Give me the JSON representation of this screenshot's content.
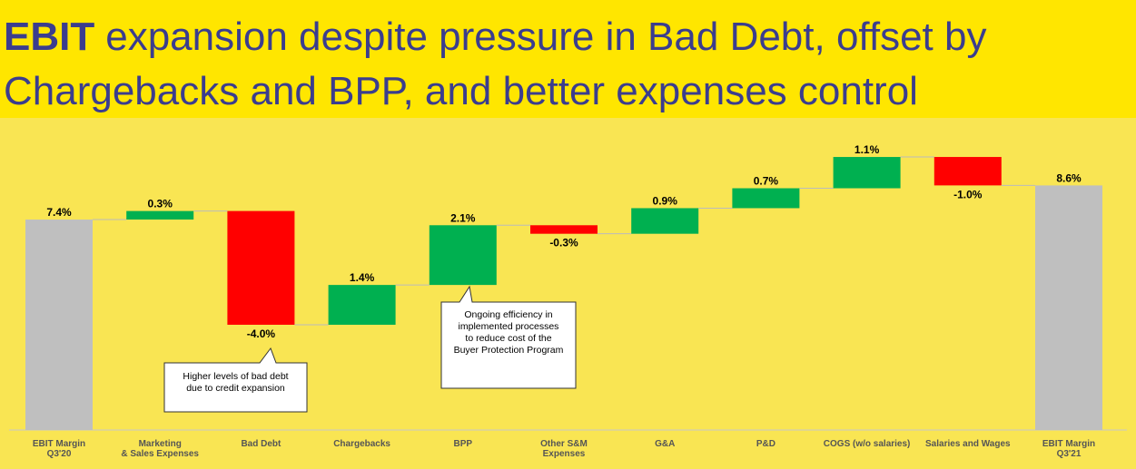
{
  "chart_data": {
    "type": "waterfall",
    "title": {
      "bold": "EBIT",
      "lines": [
        "expansion despite pressure in Bad Debt, offset by",
        "Chargebacks and BPP, and better expenses control"
      ]
    },
    "categories": [
      [
        "EBIT Margin",
        "Q3'20"
      ],
      [
        "Marketing",
        "& Sales Expenses"
      ],
      [
        "Bad Debt"
      ],
      [
        "Chargebacks"
      ],
      [
        "BPP"
      ],
      [
        "Other S&M",
        "Expenses"
      ],
      [
        "G&A"
      ],
      [
        "P&D"
      ],
      [
        "COGS (w/o salaries)"
      ],
      [
        "Salaries and Wages"
      ],
      [
        "EBIT Margin",
        "Q3'21"
      ]
    ],
    "values": [
      7.4,
      0.3,
      -4.0,
      1.4,
      2.1,
      -0.3,
      0.9,
      0.7,
      1.1,
      -1.0,
      8.6
    ],
    "value_labels": [
      "7.4%",
      "0.3%",
      "-4.0%",
      "1.4%",
      "2.1%",
      "-0.3%",
      "0.9%",
      "0.7%",
      "1.1%",
      "-1.0%",
      "8.6%"
    ],
    "total_color": "#bfbfbf",
    "increase_color": "#00b050",
    "decrease_color": "#ff0000",
    "annotations": [
      {
        "text": [
          "Higher levels of bad debt",
          "due to credit expansion"
        ]
      },
      {
        "text": [
          "Ongoing efficiency in",
          "implemented processes",
          "to reduce cost of the",
          "Buyer Protection Program"
        ]
      }
    ]
  }
}
